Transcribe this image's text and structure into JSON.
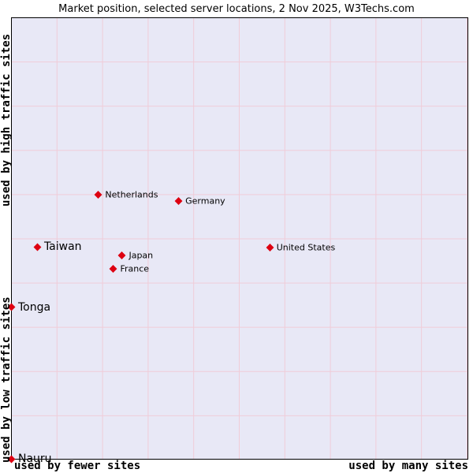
{
  "title": "Market position, selected server locations, 2 Nov 2025, W3Techs.com",
  "axes": {
    "y_top": "used by high traffic sites",
    "y_bottom": "used by low traffic sites",
    "x_left": "used by fewer sites",
    "x_right": "used by many sites"
  },
  "colors": {
    "marker": "#dd0011",
    "plot_background": "#e8e8f6",
    "grid": "#f0ccd8"
  },
  "chart_data": {
    "type": "scatter",
    "title": "Market position, selected server locations, 2 Nov 2025, W3Techs.com",
    "x_axis": {
      "label_low": "used by fewer sites",
      "label_high": "used by many sites",
      "range": [
        0,
        1
      ],
      "ticks": "none (qualitative axis)"
    },
    "y_axis": {
      "label_low": "used by low traffic sites",
      "label_high": "used by high traffic sites",
      "range": [
        0,
        1
      ],
      "ticks": "none (qualitative axis)"
    },
    "grid": "on",
    "points": [
      {
        "label": "Netherlands",
        "x": 0.191,
        "y": 0.599,
        "emphasis": false
      },
      {
        "label": "Germany",
        "x": 0.367,
        "y": 0.585,
        "emphasis": false
      },
      {
        "label": "Taiwan",
        "x": 0.057,
        "y": 0.481,
        "emphasis": true
      },
      {
        "label": "Japan",
        "x": 0.243,
        "y": 0.462,
        "emphasis": false
      },
      {
        "label": "France",
        "x": 0.224,
        "y": 0.431,
        "emphasis": false
      },
      {
        "label": "United States",
        "x": 0.567,
        "y": 0.48,
        "emphasis": false
      },
      {
        "label": "Tonga",
        "x": 0.0,
        "y": 0.344,
        "emphasis": true
      },
      {
        "label": "Nauru",
        "x": 0.0,
        "y": 0.0,
        "emphasis": true
      }
    ]
  }
}
